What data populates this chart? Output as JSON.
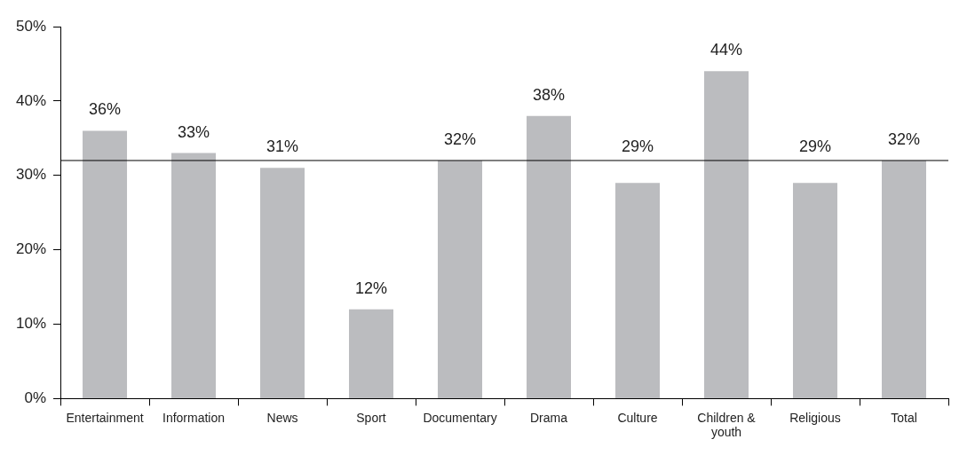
{
  "chart_data": {
    "type": "bar",
    "categories": [
      "Entertainment",
      "Information",
      "News",
      "Sport",
      "Documentary",
      "Drama",
      "Culture",
      "Children & youth",
      "Religious",
      "Total"
    ],
    "values": [
      36,
      33,
      31,
      12,
      32,
      38,
      29,
      44,
      29,
      32
    ],
    "value_labels": [
      "36%",
      "33%",
      "31%",
      "12%",
      "32%",
      "38%",
      "29%",
      "44%",
      "29%",
      "32%"
    ],
    "color": "#bbbcbf",
    "ylim": [
      0,
      50
    ],
    "yticks": [
      {
        "value": 0,
        "label": "0%"
      },
      {
        "value": 10,
        "label": "10%"
      },
      {
        "value": 20,
        "label": "20%"
      },
      {
        "value": 30,
        "label": "30%"
      },
      {
        "value": 40,
        "label": "40%"
      },
      {
        "value": 50,
        "label": "50%"
      }
    ],
    "ref_lines": [
      {
        "axis": "y",
        "value": 32,
        "color": "#000000"
      }
    ],
    "grid": false,
    "legend": false
  }
}
